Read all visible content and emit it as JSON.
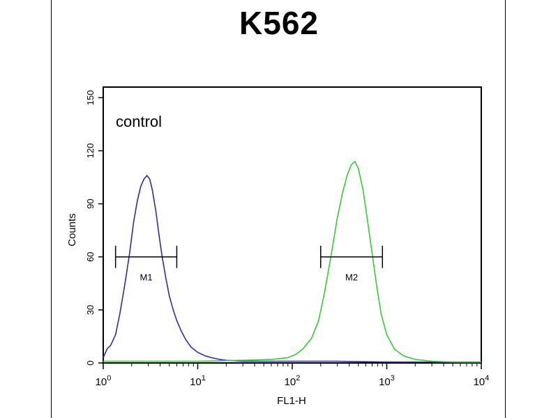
{
  "chart_data": {
    "type": "line",
    "title": "K562",
    "xlabel": "FL1-H",
    "ylabel": "Counts",
    "x_scale": "log",
    "xlim": [
      1,
      10000
    ],
    "ylim": [
      0,
      156
    ],
    "grid": false,
    "x_ticks": [
      {
        "base": "10",
        "exp": "0",
        "value": 1
      },
      {
        "base": "10",
        "exp": "1",
        "value": 10
      },
      {
        "base": "10",
        "exp": "2",
        "value": 100
      },
      {
        "base": "10",
        "exp": "3",
        "value": 1000
      },
      {
        "base": "10",
        "exp": "4",
        "value": 10000
      }
    ],
    "y_ticks": [
      "0",
      "30",
      "60",
      "90",
      "120",
      "150"
    ],
    "annotations": [
      {
        "text": "control",
        "kind": "label"
      }
    ],
    "gates": [
      {
        "name": "M1",
        "x_range": [
          1.35,
          6.0
        ],
        "y": 60
      },
      {
        "name": "M2",
        "x_range": [
          200,
          900
        ],
        "y": 60
      }
    ],
    "series": [
      {
        "color": "#2b2bb0",
        "x": [
          1.0,
          1.1,
          1.2,
          1.35,
          1.5,
          1.7,
          1.9,
          2.1,
          2.3,
          2.5,
          2.7,
          2.9,
          3.1,
          3.3,
          3.6,
          3.9,
          4.2,
          4.6,
          5.0,
          5.5,
          6.0,
          6.7,
          7.5,
          8.5,
          10,
          12,
          14,
          17,
          20,
          30,
          50,
          100,
          300,
          1000,
          10000
        ],
        "y": [
          3,
          8,
          10,
          16,
          28,
          45,
          62,
          80,
          92,
          100,
          104,
          106,
          104,
          98,
          86,
          72,
          60,
          48,
          38,
          30,
          24,
          18,
          13,
          9,
          6,
          4,
          3,
          2,
          1.5,
          1,
          1,
          1,
          1,
          0.5,
          0.5
        ]
      },
      {
        "color": "#33cc33",
        "x": [
          1.0,
          10,
          30,
          60,
          90,
          110,
          130,
          160,
          190,
          220,
          260,
          300,
          340,
          380,
          420,
          460,
          500,
          560,
          620,
          700,
          780,
          870,
          1000,
          1200,
          1500,
          2000,
          3000,
          5000,
          10000
        ],
        "y": [
          1,
          1,
          1.5,
          2,
          3,
          5,
          8,
          14,
          24,
          40,
          62,
          82,
          96,
          106,
          112,
          114,
          110,
          98,
          82,
          62,
          44,
          28,
          16,
          8,
          4,
          2,
          1,
          0.5,
          0.5
        ]
      }
    ]
  }
}
